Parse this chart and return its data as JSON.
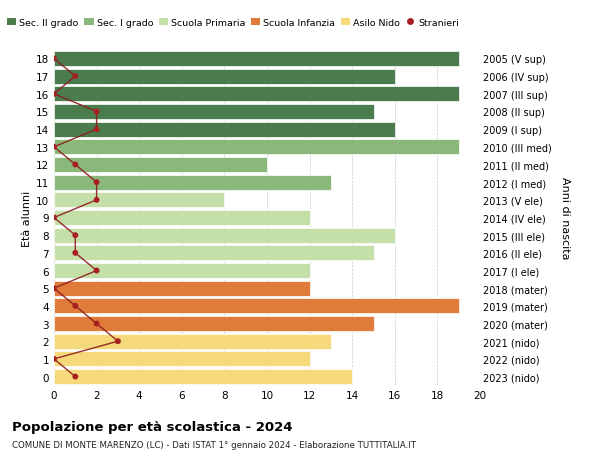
{
  "ages": [
    0,
    1,
    2,
    3,
    4,
    5,
    6,
    7,
    8,
    9,
    10,
    11,
    12,
    13,
    14,
    15,
    16,
    17,
    18
  ],
  "right_labels": [
    "2023 (nido)",
    "2022 (nido)",
    "2021 (nido)",
    "2020 (mater)",
    "2019 (mater)",
    "2018 (mater)",
    "2017 (I ele)",
    "2016 (II ele)",
    "2015 (III ele)",
    "2014 (IV ele)",
    "2013 (V ele)",
    "2012 (I med)",
    "2011 (II med)",
    "2010 (III med)",
    "2009 (I sup)",
    "2008 (II sup)",
    "2007 (III sup)",
    "2006 (IV sup)",
    "2005 (V sup)"
  ],
  "bar_values": [
    14,
    12,
    13,
    15,
    19,
    12,
    12,
    15,
    16,
    12,
    8,
    13,
    10,
    19,
    16,
    15,
    19,
    16,
    19
  ],
  "bar_colors": [
    "#f5d97a",
    "#f5d97a",
    "#f5d97a",
    "#e07b3a",
    "#e07b3a",
    "#e07b3a",
    "#c5dfa8",
    "#c5dfa8",
    "#c5dfa8",
    "#c5dfa8",
    "#c5dfa8",
    "#8ab87a",
    "#8ab87a",
    "#8ab87a",
    "#4a7c4e",
    "#4a7c4e",
    "#4a7c4e",
    "#4a7c4e",
    "#4a7c4e"
  ],
  "stranieri_values": [
    1,
    0,
    3,
    2,
    1,
    0,
    2,
    1,
    1,
    0,
    2,
    2,
    1,
    0,
    2,
    2,
    0,
    1,
    0
  ],
  "legend_labels": [
    "Sec. II grado",
    "Sec. I grado",
    "Scuola Primaria",
    "Scuola Infanzia",
    "Asilo Nido",
    "Stranieri"
  ],
  "legend_colors": [
    "#4a7c4e",
    "#8ab87a",
    "#c5dfa8",
    "#e07b3a",
    "#f5d97a",
    "#a82020"
  ],
  "ylabel_left": "Età alunni",
  "ylabel_right": "Anni di nascita",
  "title": "Popolazione per età scolastica - 2024",
  "subtitle": "COMUNE DI MONTE MARENZO (LC) - Dati ISTAT 1° gennaio 2024 - Elaborazione TUTTITALIA.IT",
  "xlim": [
    0,
    20
  ],
  "xticks": [
    0,
    2,
    4,
    6,
    8,
    10,
    12,
    14,
    16,
    18,
    20
  ],
  "bar_height": 0.85,
  "stranieri_color": "#a82020",
  "line_color": "#8b1a1a",
  "bg_color": "#ffffff",
  "grid_color": "#cccccc"
}
